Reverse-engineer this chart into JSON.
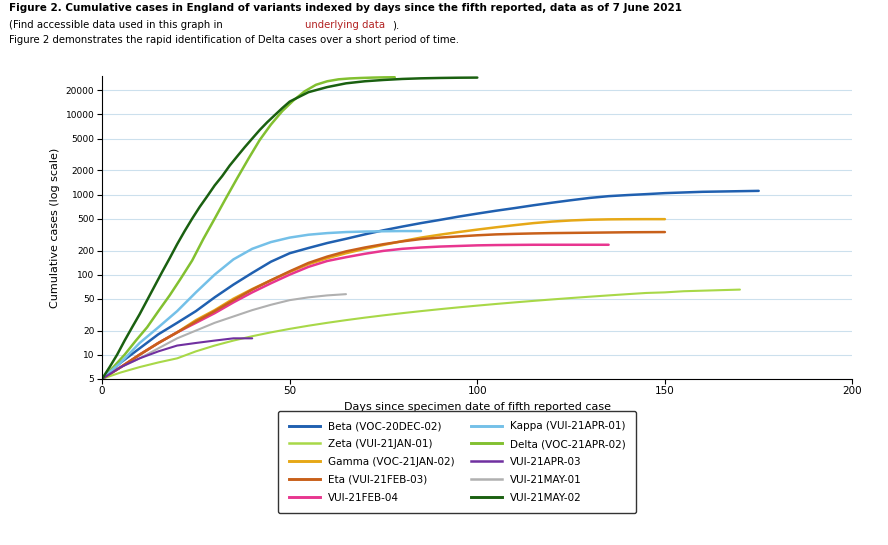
{
  "title_line1": "Figure 2. Cumulative cases in England of variants indexed by days since the fifth reported, data as of 7 June 2021",
  "title_line2": "(Find accessible data used in this graph in underlying data).",
  "title_line3": "Figure 2 demonstrates the rapid identification of Delta cases over a short period of time.",
  "title_line2_link": "underlying data",
  "xlabel": "Days since specimen date of fifth reported case",
  "ylabel": "Cumulative cases (log scale)",
  "xlim": [
    0,
    200
  ],
  "ylim_log": [
    5,
    30000
  ],
  "yticks": [
    5,
    10,
    20,
    50,
    100,
    200,
    500,
    1000,
    2000,
    5000,
    10000,
    20000
  ],
  "xticks": [
    0,
    50,
    100,
    150,
    200
  ],
  "series": [
    {
      "label": "Beta (VOC-20DEC-02)",
      "color": "#2060b0",
      "lw": 1.8,
      "x": [
        0,
        5,
        10,
        15,
        20,
        25,
        30,
        35,
        40,
        45,
        50,
        55,
        60,
        65,
        70,
        75,
        80,
        85,
        90,
        95,
        100,
        105,
        110,
        115,
        120,
        125,
        130,
        135,
        140,
        145,
        150,
        155,
        160,
        165,
        170,
        175
      ],
      "y": [
        5,
        8,
        12,
        18,
        25,
        35,
        52,
        75,
        105,
        145,
        185,
        215,
        248,
        280,
        318,
        358,
        398,
        440,
        482,
        530,
        578,
        628,
        678,
        735,
        792,
        850,
        908,
        955,
        985,
        1012,
        1042,
        1062,
        1082,
        1092,
        1102,
        1112
      ]
    },
    {
      "label": "Gamma (VOC-21JAN-02)",
      "color": "#e6a817",
      "lw": 1.8,
      "x": [
        0,
        5,
        10,
        15,
        20,
        25,
        30,
        35,
        40,
        45,
        50,
        55,
        60,
        65,
        70,
        75,
        80,
        85,
        90,
        95,
        100,
        105,
        110,
        115,
        120,
        125,
        130,
        135,
        140,
        145,
        150
      ],
      "y": [
        5,
        7,
        10,
        14,
        19,
        27,
        36,
        50,
        66,
        85,
        108,
        135,
        160,
        185,
        210,
        235,
        262,
        290,
        315,
        340,
        365,
        390,
        415,
        440,
        460,
        475,
        485,
        490,
        492,
        493,
        493
      ]
    },
    {
      "label": "VUI-21FEB-04",
      "color": "#e8368f",
      "lw": 1.8,
      "x": [
        0,
        5,
        10,
        15,
        20,
        25,
        30,
        35,
        40,
        45,
        50,
        55,
        60,
        65,
        70,
        75,
        80,
        85,
        90,
        95,
        100,
        105,
        110,
        115,
        120,
        125,
        130,
        135
      ],
      "y": [
        5,
        7,
        10,
        14,
        19,
        25,
        33,
        45,
        60,
        78,
        100,
        125,
        148,
        165,
        182,
        198,
        210,
        218,
        224,
        228,
        232,
        234,
        235,
        236,
        236,
        236,
        236,
        236
      ]
    },
    {
      "label": "Delta (VOC-21APR-02)",
      "color": "#82c030",
      "lw": 1.8,
      "x": [
        0,
        3,
        6,
        9,
        12,
        15,
        18,
        21,
        24,
        27,
        30,
        33,
        36,
        39,
        42,
        45,
        48,
        51,
        54,
        57,
        60,
        63,
        66,
        69,
        72,
        75,
        78
      ],
      "y": [
        5,
        7,
        10,
        15,
        22,
        35,
        55,
        90,
        150,
        280,
        500,
        900,
        1600,
        2800,
        4800,
        7500,
        11000,
        15000,
        19500,
        23500,
        26000,
        27500,
        28200,
        28600,
        28900,
        29100,
        29200
      ]
    },
    {
      "label": "VUI-21MAY-01",
      "color": "#b0b0b0",
      "lw": 1.5,
      "x": [
        0,
        5,
        10,
        15,
        20,
        25,
        30,
        35,
        40,
        45,
        50,
        55,
        60,
        65
      ],
      "y": [
        5,
        7,
        9,
        12,
        16,
        20,
        25,
        30,
        36,
        42,
        48,
        52,
        55,
        57
      ]
    },
    {
      "label": "Zeta (VUI-21JAN-01)",
      "color": "#a8d848",
      "lw": 1.5,
      "x": [
        0,
        5,
        10,
        15,
        20,
        25,
        30,
        35,
        40,
        45,
        50,
        55,
        60,
        65,
        70,
        75,
        80,
        85,
        90,
        95,
        100,
        105,
        110,
        115,
        120,
        125,
        130,
        135,
        140,
        145,
        150,
        155,
        160,
        165,
        170
      ],
      "y": [
        5,
        6,
        7,
        8,
        9,
        11,
        13,
        15,
        17,
        19,
        21,
        23,
        25,
        27,
        29,
        31,
        33,
        35,
        37,
        39,
        41,
        43,
        45,
        47,
        49,
        51,
        53,
        55,
        57,
        59,
        60,
        62,
        63,
        64,
        65
      ]
    },
    {
      "label": "Eta (VUI-21FEB-03)",
      "color": "#c8601a",
      "lw": 1.8,
      "x": [
        0,
        5,
        10,
        15,
        20,
        25,
        30,
        35,
        40,
        45,
        50,
        55,
        60,
        65,
        70,
        75,
        80,
        85,
        90,
        95,
        100,
        105,
        110,
        115,
        120,
        125,
        130,
        135,
        140,
        145,
        150
      ],
      "y": [
        5,
        7,
        10,
        14,
        19,
        26,
        35,
        48,
        65,
        85,
        110,
        140,
        168,
        195,
        218,
        240,
        260,
        278,
        290,
        300,
        310,
        318,
        323,
        327,
        330,
        332,
        334,
        336,
        338,
        339,
        340
      ]
    },
    {
      "label": "Kappa (VUI-21APR-01)",
      "color": "#74c0e8",
      "lw": 1.8,
      "x": [
        0,
        5,
        10,
        15,
        20,
        25,
        30,
        35,
        40,
        45,
        50,
        55,
        60,
        65,
        70,
        75,
        80,
        85
      ],
      "y": [
        5,
        8,
        14,
        22,
        35,
        60,
        100,
        155,
        210,
        255,
        290,
        315,
        330,
        340,
        345,
        348,
        350,
        350
      ]
    },
    {
      "label": "VUI-21APR-03",
      "color": "#7030a0",
      "lw": 1.5,
      "x": [
        0,
        5,
        10,
        15,
        20,
        25,
        30,
        35,
        40
      ],
      "y": [
        5,
        7,
        9,
        11,
        13,
        14,
        15,
        16,
        16
      ]
    },
    {
      "label": "VUI-21MAY-02",
      "color": "#1a6010",
      "lw": 1.8,
      "x": [
        0,
        2,
        4,
        6,
        8,
        10,
        12,
        14,
        16,
        18,
        20,
        22,
        24,
        26,
        28,
        30,
        32,
        34,
        36,
        38,
        40,
        42,
        44,
        46,
        48,
        50,
        55,
        60,
        65,
        70,
        75,
        80,
        85,
        90,
        95,
        100
      ],
      "y": [
        5,
        7,
        10,
        15,
        22,
        32,
        48,
        72,
        108,
        160,
        240,
        350,
        500,
        700,
        950,
        1300,
        1700,
        2300,
        3000,
        3900,
        5000,
        6400,
        8000,
        9800,
        12000,
        14500,
        19000,
        22000,
        24500,
        26000,
        27000,
        27800,
        28300,
        28600,
        28800,
        28900
      ]
    }
  ],
  "legend_order": [
    "Beta (VOC-20DEC-02)",
    "Zeta (VUI-21JAN-01)",
    "Gamma (VOC-21JAN-02)",
    "Eta (VUI-21FEB-03)",
    "VUI-21FEB-04",
    "Kappa (VUI-21APR-01)",
    "Delta (VOC-21APR-02)",
    "VUI-21APR-03",
    "VUI-21MAY-01",
    "VUI-21MAY-02"
  ],
  "grid_color": "#cce0ed",
  "bg_color": "#ffffff",
  "plot_bg_color": "#ffffff",
  "fig_width": 8.88,
  "fig_height": 5.45,
  "title_color_link": "#b22222"
}
